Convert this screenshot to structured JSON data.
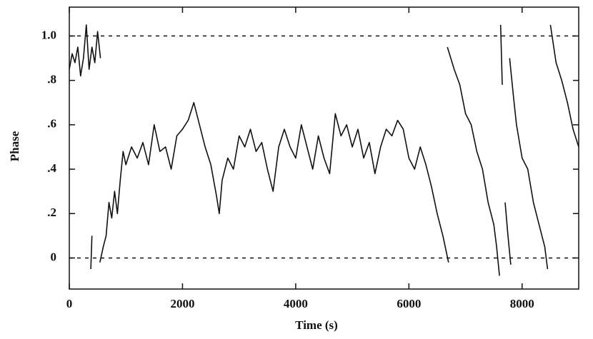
{
  "chart_data": {
    "type": "line",
    "xlabel": "Time (s)",
    "ylabel": "Phase",
    "xlim": [
      0,
      9000
    ],
    "ylim": [
      -0.14,
      1.13
    ],
    "xticks": [
      0,
      2000,
      4000,
      6000,
      8000
    ],
    "yticks": [
      0,
      {
        "value": 0.2,
        "label": ".2"
      },
      {
        "value": 0.4,
        "label": ".4"
      },
      {
        "value": 0.6,
        "label": ".6"
      },
      {
        "value": 0.8,
        "label": ".8"
      },
      {
        "value": 1.0,
        "label": "1.0"
      }
    ],
    "hlines": [
      0,
      1
    ],
    "color": "#111111",
    "x": [
      0,
      50,
      100,
      150,
      200,
      250,
      300,
      350,
      400,
      450,
      500,
      550,
      null,
      380,
      400,
      null,
      540,
      600,
      650,
      700,
      750,
      800,
      850,
      900,
      950,
      1000,
      1100,
      1200,
      1300,
      1400,
      1500,
      1600,
      1700,
      1800,
      1900,
      2000,
      2100,
      2200,
      2300,
      2400,
      2500,
      2600,
      2650,
      2700,
      2800,
      2900,
      3000,
      3100,
      3200,
      3300,
      3400,
      3500,
      3600,
      3700,
      3800,
      3900,
      4000,
      4100,
      4200,
      4300,
      4400,
      4500,
      4600,
      4700,
      4800,
      4900,
      5000,
      5100,
      5200,
      5300,
      5400,
      5500,
      5600,
      5700,
      5800,
      5900,
      6000,
      6100,
      6200,
      6300,
      6400,
      6500,
      6600,
      6700,
      null,
      6680,
      6800,
      6900,
      7000,
      7100,
      7200,
      7300,
      7400,
      7500,
      7550,
      7600,
      null,
      7620,
      7650,
      null,
      7700,
      7750,
      7800,
      null,
      7780,
      7850,
      7900,
      8000,
      8100,
      8200,
      8300,
      8400,
      8450,
      null,
      8500,
      8600,
      8700,
      8800,
      8900,
      9000
    ],
    "values": [
      0.85,
      0.92,
      0.88,
      0.95,
      0.82,
      0.9,
      1.05,
      0.85,
      0.95,
      0.88,
      1.02,
      0.9,
      null,
      -0.05,
      0.1,
      null,
      -0.02,
      0.05,
      0.1,
      0.25,
      0.18,
      0.3,
      0.2,
      0.35,
      0.48,
      0.42,
      0.5,
      0.45,
      0.52,
      0.42,
      0.6,
      0.48,
      0.5,
      0.4,
      0.55,
      0.58,
      0.62,
      0.7,
      0.6,
      0.5,
      0.42,
      0.28,
      0.2,
      0.35,
      0.45,
      0.4,
      0.55,
      0.5,
      0.58,
      0.48,
      0.52,
      0.4,
      0.3,
      0.5,
      0.58,
      0.5,
      0.45,
      0.6,
      0.5,
      0.4,
      0.55,
      0.45,
      0.38,
      0.65,
      0.55,
      0.6,
      0.5,
      0.58,
      0.45,
      0.52,
      0.38,
      0.5,
      0.58,
      0.55,
      0.62,
      0.58,
      0.45,
      0.4,
      0.5,
      0.42,
      0.32,
      0.2,
      0.1,
      -0.02,
      null,
      0.95,
      0.85,
      0.78,
      0.65,
      0.6,
      0.48,
      0.4,
      0.25,
      0.15,
      0.05,
      -0.08,
      null,
      1.05,
      0.78,
      null,
      0.25,
      0.1,
      -0.03,
      null,
      0.9,
      0.72,
      0.6,
      0.45,
      0.4,
      0.25,
      0.15,
      0.05,
      -0.05,
      null,
      1.05,
      0.88,
      0.8,
      0.7,
      0.58,
      0.5
    ]
  }
}
